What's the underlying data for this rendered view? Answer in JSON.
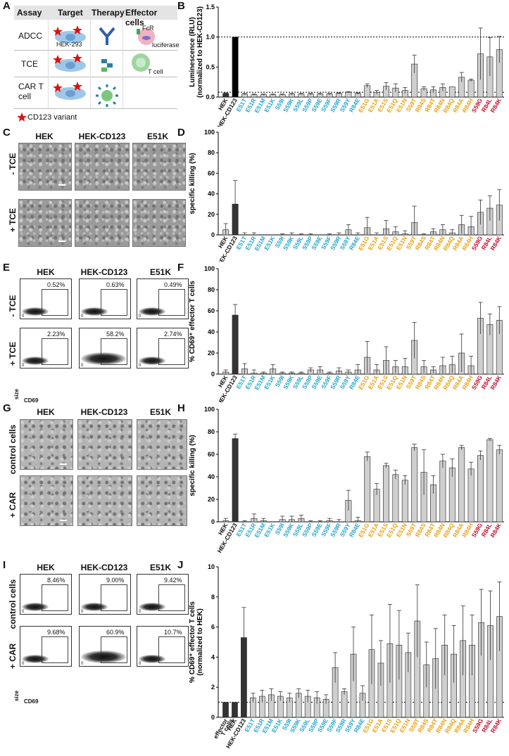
{
  "panel_labels": [
    "A",
    "B",
    "C",
    "D",
    "E",
    "F",
    "G",
    "H",
    "I",
    "J"
  ],
  "panelA": {
    "headers": [
      "Assay",
      "Target",
      "Therapy",
      "Effector cells"
    ],
    "rows": [
      "ADCC",
      "TCE",
      "CAR T cell"
    ],
    "cell_line": "HEK-293",
    "fcr": "FcR",
    "luciferase": "luciferase",
    "tcell": "T cell",
    "legend": "CD123 variant"
  },
  "images": {
    "col_heads": [
      "HEK",
      "HEK-CD123",
      "E51K"
    ],
    "C_rows": [
      "- TCE",
      "+ TCE"
    ],
    "G_rows": [
      "control cells",
      "+ CAR"
    ]
  },
  "facsE": {
    "col_heads": [
      "HEK",
      "HEK-CD123",
      "E51K"
    ],
    "rows": [
      "- TCE",
      "+ TCE"
    ],
    "pcts": [
      [
        "0.52%",
        "0.63%",
        "0.49%"
      ],
      [
        "2.23%",
        "58.2%",
        "2.74%"
      ]
    ],
    "x_axis": "CD69",
    "y_axis": "size",
    "tick": "0"
  },
  "facsI": {
    "col_heads": [
      "HEK",
      "HEK-CD123",
      "E51K"
    ],
    "rows": [
      "control cells",
      "+ CAR"
    ],
    "pcts": [
      [
        "8.46%",
        "9.00%",
        "9.42%"
      ],
      [
        "9.68%",
        "60.9%",
        "10.7%"
      ]
    ],
    "x_axis": "CD69",
    "y_axis": "size",
    "tick": "0"
  },
  "label_colors": {
    "black": "#111111",
    "cyan": "#2aa7c9",
    "orange": "#e8a317",
    "red": "#c8102e"
  },
  "chart_data": [
    {
      "id": "B",
      "type": "bar",
      "ylabel": "Luminescence (RLU)\n(normalized to HEK-CD123)",
      "ylim": [
        0,
        1.5
      ],
      "yticks": [
        0.0,
        0.5,
        1.0,
        1.5
      ],
      "ref_lines": [
        1.0,
        0.08
      ],
      "categories": [
        "HEK",
        "HEK-CD123",
        "E51T",
        "E51R",
        "E51M",
        "E51K",
        "S59I",
        "S59K",
        "S59L",
        "S59P",
        "S59E",
        "S59F",
        "S59R",
        "S59Y",
        "R84E",
        "E51G",
        "E51A",
        "E51S",
        "E51Q",
        "E51N",
        "S59T",
        "R84S",
        "R84T",
        "R84N",
        "R84Q",
        "R84A",
        "R84H",
        "S59G",
        "R84L",
        "R84K"
      ],
      "label_groups": [
        "black",
        "black",
        "cyan",
        "cyan",
        "cyan",
        "cyan",
        "cyan",
        "cyan",
        "cyan",
        "cyan",
        "cyan",
        "cyan",
        "cyan",
        "cyan",
        "cyan",
        "orange",
        "orange",
        "orange",
        "orange",
        "orange",
        "orange",
        "orange",
        "orange",
        "orange",
        "orange",
        "orange",
        "orange",
        "red",
        "red",
        "red"
      ],
      "values": [
        0.06,
        1.0,
        0.05,
        0.04,
        0.04,
        0.04,
        0.04,
        0.05,
        0.05,
        0.05,
        0.05,
        0.05,
        0.06,
        0.08,
        0.06,
        0.19,
        0.08,
        0.18,
        0.15,
        0.11,
        0.55,
        0.14,
        0.12,
        0.16,
        0.17,
        0.33,
        0.28,
        0.72,
        0.67,
        0.79
      ],
      "errors": [
        0.01,
        0.0,
        0.01,
        0.01,
        0.01,
        0.01,
        0.01,
        0.01,
        0.01,
        0.01,
        0.01,
        0.01,
        0.01,
        0.01,
        0.01,
        0.03,
        0.03,
        0.06,
        0.07,
        0.05,
        0.15,
        0.03,
        0.05,
        0.06,
        0.0,
        0.08,
        0.02,
        0.43,
        0.32,
        0.22
      ]
    },
    {
      "id": "D",
      "type": "bar",
      "ylabel": "specific killing (%)",
      "ylim": [
        0,
        100
      ],
      "yticks": [
        0,
        20,
        40,
        60,
        80,
        100
      ],
      "categories": [
        "HEK",
        "HEK-CD123",
        "E51T",
        "E51R",
        "E51M",
        "E51K",
        "S59I",
        "S59K",
        "S59L",
        "S59P",
        "S59E",
        "S59F",
        "S59R",
        "S59Y",
        "R84E",
        "E51G",
        "E51A",
        "E51S",
        "E51Q",
        "E51N",
        "S59T",
        "R84S",
        "R84T",
        "R84N",
        "R84Q",
        "R84A",
        "R84H",
        "S59G",
        "R84L",
        "R84K"
      ],
      "label_groups": [
        "black",
        "black",
        "cyan",
        "cyan",
        "cyan",
        "cyan",
        "cyan",
        "cyan",
        "cyan",
        "cyan",
        "cyan",
        "cyan",
        "cyan",
        "cyan",
        "cyan",
        "orange",
        "orange",
        "orange",
        "orange",
        "orange",
        "orange",
        "orange",
        "orange",
        "orange",
        "orange",
        "orange",
        "orange",
        "red",
        "red",
        "red"
      ],
      "values": [
        5,
        30,
        0,
        0,
        0,
        0,
        0,
        0,
        0,
        0,
        0,
        0,
        0,
        5,
        0,
        7,
        0,
        6,
        3,
        1,
        12,
        0,
        3,
        5,
        2,
        10,
        8,
        22,
        26,
        29
      ],
      "errors": [
        6,
        23,
        2,
        2,
        0,
        0,
        1,
        2,
        1,
        1,
        0,
        1,
        2,
        5,
        2,
        10,
        2,
        8,
        5,
        3,
        16,
        1,
        3,
        5,
        3,
        9,
        10,
        12,
        12,
        15
      ]
    },
    {
      "id": "F",
      "type": "bar",
      "ylabel": "% CD69⁺ effector T cells",
      "ylim": [
        0,
        100
      ],
      "yticks": [
        0,
        20,
        40,
        60,
        80,
        100
      ],
      "categories": [
        "HEK",
        "HEK-CD123",
        "E51T",
        "E51R",
        "E51M",
        "E51K",
        "S59I",
        "S59K",
        "S59L",
        "S59P",
        "S59E",
        "S59F",
        "S59R",
        "S59Y",
        "R84E",
        "E51G",
        "E51A",
        "E51S",
        "E51Q",
        "E51N",
        "S59T",
        "R84S",
        "R84T",
        "R84N",
        "R84Q",
        "R84A",
        "R84H",
        "S59G",
        "R84L",
        "R84K"
      ],
      "label_groups": [
        "black",
        "black",
        "cyan",
        "cyan",
        "cyan",
        "cyan",
        "cyan",
        "cyan",
        "cyan",
        "cyan",
        "cyan",
        "cyan",
        "cyan",
        "cyan",
        "cyan",
        "orange",
        "orange",
        "orange",
        "orange",
        "orange",
        "orange",
        "orange",
        "orange",
        "orange",
        "orange",
        "orange",
        "orange",
        "red",
        "red",
        "red"
      ],
      "values": [
        2,
        56,
        5,
        1,
        1,
        5,
        1,
        1,
        1,
        4,
        4,
        1,
        3,
        2,
        4,
        16,
        4,
        13,
        7,
        7,
        32,
        7,
        4,
        8,
        9,
        20,
        8,
        53,
        47,
        51
      ],
      "errors": [
        2,
        10,
        5,
        3,
        1,
        4,
        1,
        1,
        1,
        2,
        3,
        1,
        3,
        2,
        5,
        15,
        5,
        13,
        6,
        8,
        17,
        6,
        3,
        8,
        8,
        18,
        9,
        15,
        10,
        13
      ]
    },
    {
      "id": "H",
      "type": "bar",
      "ylabel": "specific killing (%)",
      "ylim": [
        0,
        100
      ],
      "yticks": [
        0,
        20,
        40,
        60,
        80,
        100
      ],
      "categories": [
        "HEK",
        "HEK-CD123",
        "E51T",
        "E51R",
        "E51M",
        "E51K",
        "S59I",
        "S59K",
        "S59L",
        "S59P",
        "S59E",
        "S59F",
        "S59R",
        "S59Y",
        "R84E",
        "E51G",
        "E51A",
        "E51S",
        "E51Q",
        "E51N",
        "S59T",
        "R84S",
        "R84T",
        "R84N",
        "R84Q",
        "R84A",
        "R84H",
        "S59G",
        "R84L",
        "R84K"
      ],
      "label_groups": [
        "black",
        "black",
        "cyan",
        "cyan",
        "cyan",
        "cyan",
        "cyan",
        "cyan",
        "cyan",
        "cyan",
        "cyan",
        "cyan",
        "cyan",
        "cyan",
        "cyan",
        "orange",
        "orange",
        "orange",
        "orange",
        "orange",
        "orange",
        "orange",
        "orange",
        "orange",
        "orange",
        "orange",
        "orange",
        "red",
        "red",
        "red"
      ],
      "values": [
        1,
        74,
        0,
        3,
        1,
        0,
        2,
        2,
        3,
        0,
        0,
        1,
        0,
        19,
        1,
        58,
        29,
        50,
        42,
        37,
        66,
        44,
        33,
        54,
        48,
        66,
        47,
        59,
        73,
        64
      ],
      "errors": [
        2,
        4,
        1,
        4,
        2,
        0,
        3,
        3,
        3,
        1,
        1,
        2,
        2,
        9,
        3,
        4,
        5,
        2,
        4,
        4,
        3,
        20,
        8,
        6,
        8,
        2,
        6,
        4,
        1,
        4
      ]
    },
    {
      "id": "J",
      "type": "bar",
      "ylabel": "% CD69⁺ effector T cells\n(normalized to HEK)",
      "ylim": [
        0,
        10
      ],
      "yticks": [
        0,
        2,
        4,
        6,
        8,
        10
      ],
      "ref_lines": [
        1.0
      ],
      "categories": [
        "effector\nT cells",
        "HEK",
        "HEK-CD123",
        "E51T",
        "E51R",
        "E51M",
        "E51K",
        "S59I",
        "S59K",
        "S59L",
        "S59P",
        "S59E",
        "S59F",
        "S59R",
        "S59Y",
        "R84E",
        "E51G",
        "E51A",
        "E51S",
        "E51Q",
        "E51N",
        "S59T",
        "R84S",
        "R84T",
        "R84N",
        "R84Q",
        "R84A",
        "R84H",
        "S59G",
        "R84L",
        "R84K"
      ],
      "label_groups": [
        "black",
        "black",
        "black",
        "cyan",
        "cyan",
        "cyan",
        "cyan",
        "cyan",
        "cyan",
        "cyan",
        "cyan",
        "cyan",
        "cyan",
        "cyan",
        "cyan",
        "cyan",
        "orange",
        "orange",
        "orange",
        "orange",
        "orange",
        "orange",
        "orange",
        "orange",
        "orange",
        "orange",
        "orange",
        "orange",
        "red",
        "red",
        "red"
      ],
      "values": [
        1.0,
        1.0,
        5.3,
        1.3,
        1.4,
        1.5,
        1.4,
        1.3,
        1.6,
        1.4,
        1.3,
        1.2,
        3.3,
        1.7,
        4.2,
        1.6,
        4.5,
        3.6,
        4.9,
        4.8,
        4.3,
        6.4,
        3.5,
        3.9,
        4.8,
        4.2,
        5.1,
        4.8,
        6.3,
        6.1,
        6.7
      ],
      "errors": [
        0,
        0,
        2.0,
        0.3,
        0.4,
        0.4,
        0.3,
        0.3,
        0.3,
        0.4,
        0.4,
        0.3,
        1.0,
        0.2,
        1.8,
        0.5,
        2.3,
        1.5,
        2.6,
        2.3,
        1.3,
        2.4,
        1.5,
        2.0,
        2.0,
        1.9,
        2.3,
        2.0,
        2.2,
        2.3,
        2.3
      ]
    }
  ]
}
